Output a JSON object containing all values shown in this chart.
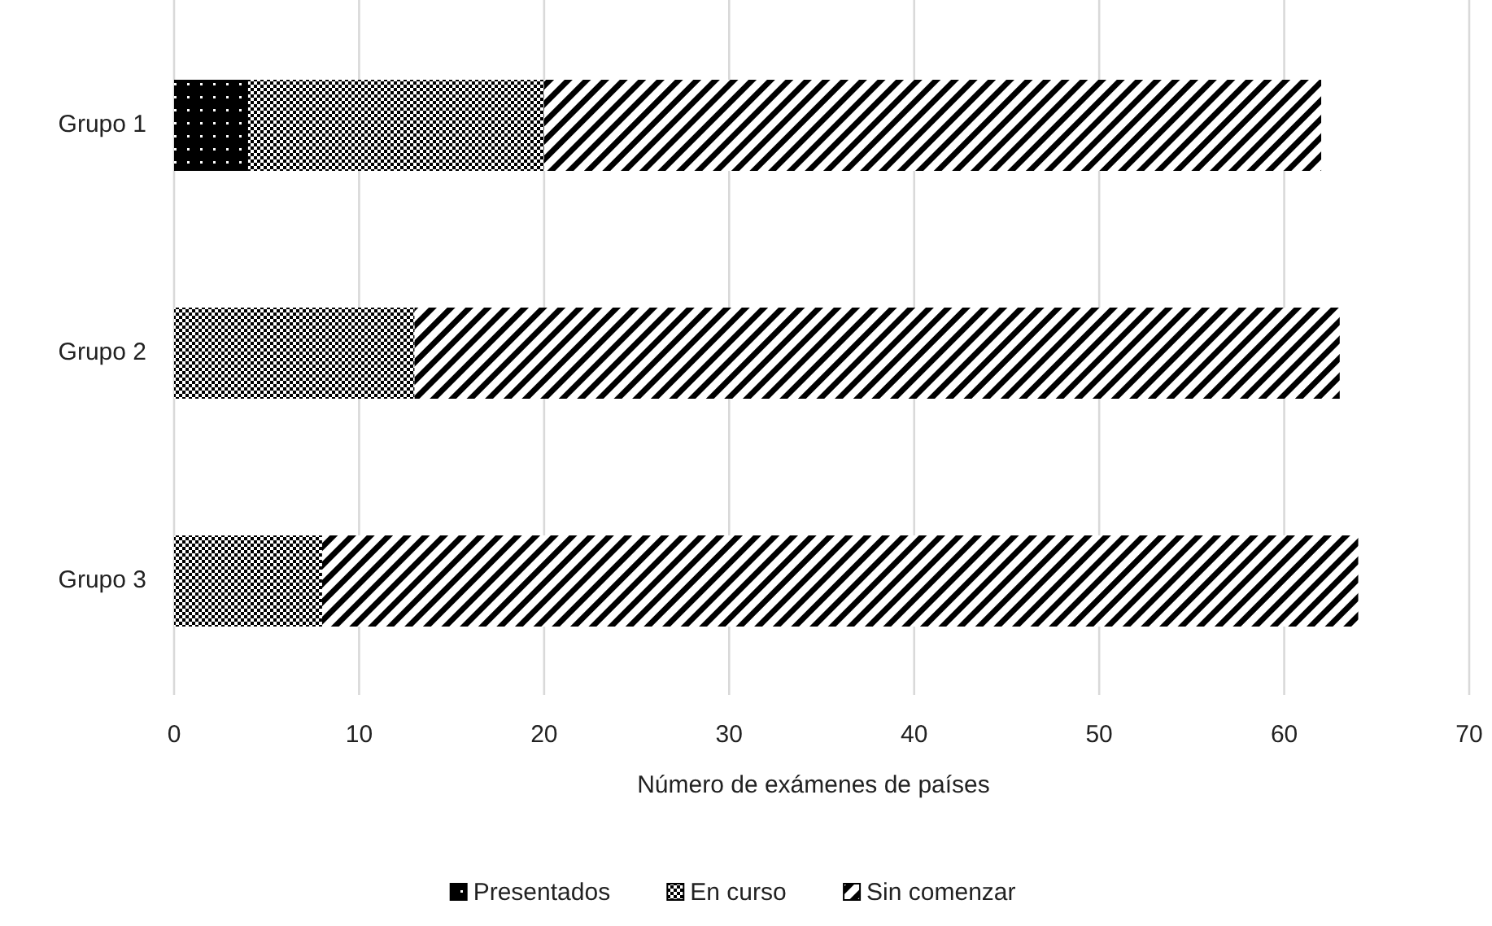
{
  "chart_data": {
    "type": "bar",
    "orientation": "horizontal",
    "stacked": true,
    "categories": [
      "Grupo 1",
      "Grupo 2",
      "Grupo 3"
    ],
    "series": [
      {
        "name": "Presentados",
        "color": "#000000",
        "values": [
          4,
          0,
          0
        ]
      },
      {
        "name": "En curso",
        "color": "#000000",
        "values": [
          16,
          13,
          8
        ]
      },
      {
        "name": "Sin comenzar",
        "color": "#000000",
        "values": [
          42,
          50,
          56
        ]
      }
    ],
    "xlabel": "Número de exámenes de países",
    "xlim": [
      0,
      70
    ],
    "xticks": [
      0,
      10,
      20,
      30,
      40,
      50,
      60,
      70
    ],
    "grid": "x",
    "legend": "bottom"
  }
}
